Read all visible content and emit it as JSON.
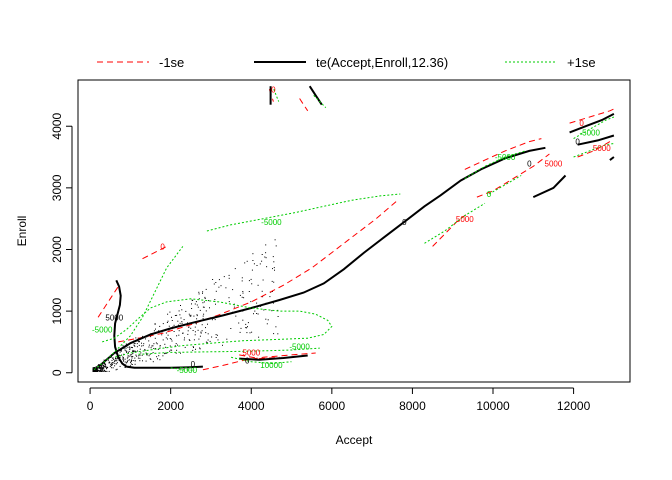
{
  "chart_data": {
    "type": "line",
    "xlabel": "Accept",
    "ylabel": "Enroll",
    "xlim": [
      -300,
      13400
    ],
    "ylim": [
      -150,
      4750
    ],
    "xticks": [
      0,
      2000,
      4000,
      6000,
      8000,
      10000,
      12000
    ],
    "yticks": [
      0,
      1000,
      2000,
      3000,
      4000
    ],
    "legend_position": "top",
    "series": [
      {
        "name": "-1se",
        "color": "#ff0000",
        "dash": "6,4",
        "width": 1,
        "segments": [
          [
            [
              200,
              900
            ],
            [
              350,
              1050
            ],
            [
              500,
              1200
            ],
            [
              700,
              1400
            ]
          ],
          [
            [
              1300,
              1850
            ],
            [
              1600,
              1950
            ],
            [
              1900,
              2050
            ]
          ],
          [
            [
              700,
              500
            ],
            [
              1200,
              560
            ],
            [
              1800,
              640
            ],
            [
              2500,
              780
            ],
            [
              3200,
              940
            ],
            [
              4000,
              1150
            ],
            [
              4800,
              1420
            ],
            [
              5500,
              1700
            ],
            [
              6100,
              2000
            ],
            [
              6600,
              2250
            ],
            [
              7100,
              2500
            ],
            [
              7600,
              2780
            ]
          ],
          [
            [
              2800,
              50
            ],
            [
              3300,
              120
            ],
            [
              3800,
              200
            ],
            [
              4300,
              250
            ],
            [
              5000,
              290
            ],
            [
              5600,
              320
            ]
          ],
          [
            [
              3700,
              290
            ],
            [
              4200,
              230
            ],
            [
              4700,
              250
            ]
          ],
          [
            [
              4450,
              4600
            ],
            [
              4500,
              4500
            ],
            [
              4550,
              4400
            ]
          ],
          [
            [
              5200,
              4450
            ],
            [
              5300,
              4350
            ],
            [
              5400,
              4250
            ]
          ],
          [
            [
              8500,
              2050
            ],
            [
              8800,
              2250
            ],
            [
              9100,
              2450
            ],
            [
              9400,
              2600
            ]
          ],
          [
            [
              9300,
              3300
            ],
            [
              9800,
              3450
            ],
            [
              10300,
              3600
            ],
            [
              10900,
              3750
            ],
            [
              11200,
              3800
            ]
          ],
          [
            [
              9600,
              2850
            ],
            [
              10000,
              2950
            ],
            [
              10500,
              3150
            ],
            [
              11000,
              3350
            ],
            [
              11400,
              3550
            ]
          ],
          [
            [
              11900,
              4050
            ],
            [
              12400,
              4150
            ],
            [
              12900,
              4250
            ],
            [
              13000,
              4280
            ]
          ],
          [
            [
              12100,
              3500
            ],
            [
              12500,
              3600
            ],
            [
              12900,
              3750
            ]
          ]
        ]
      },
      {
        "name": "te(Accept,Enroll,12.36)",
        "color": "#000000",
        "dash": "",
        "width": 2,
        "segments": [
          [
            [
              80,
              30
            ],
            [
              300,
              150
            ],
            [
              600,
              320
            ],
            [
              1000,
              480
            ],
            [
              1500,
              620
            ],
            [
              2000,
              720
            ],
            [
              2600,
              820
            ],
            [
              3300,
              930
            ],
            [
              4000,
              1050
            ],
            [
              4700,
              1180
            ],
            [
              5300,
              1300
            ],
            [
              5800,
              1450
            ],
            [
              6300,
              1680
            ],
            [
              6800,
              1950
            ],
            [
              7300,
              2200
            ],
            [
              7800,
              2450
            ],
            [
              8300,
              2700
            ],
            [
              8700,
              2880
            ],
            [
              9200,
              3120
            ],
            [
              9700,
              3300
            ],
            [
              10300,
              3480
            ],
            [
              10900,
              3600
            ],
            [
              11300,
              3650
            ]
          ],
          [
            [
              650,
              1500
            ],
            [
              720,
              1400
            ],
            [
              760,
              1250
            ],
            [
              740,
              1100
            ],
            [
              680,
              950
            ],
            [
              620,
              800
            ],
            [
              600,
              600
            ],
            [
              620,
              420
            ],
            [
              700,
              250
            ],
            [
              800,
              150
            ],
            [
              900,
              100
            ],
            [
              1100,
              80
            ],
            [
              1500,
              80
            ],
            [
              2000,
              80
            ],
            [
              2500,
              90
            ],
            [
              2800,
              100
            ]
          ],
          [
            [
              3700,
              230
            ],
            [
              4200,
              210
            ],
            [
              4800,
              240
            ],
            [
              5400,
              280
            ]
          ],
          [
            [
              4480,
              4650
            ],
            [
              4480,
              4500
            ],
            [
              4480,
              4350
            ]
          ],
          [
            [
              5450,
              4650
            ],
            [
              5600,
              4500
            ],
            [
              5750,
              4350
            ]
          ],
          [
            [
              11000,
              2850
            ],
            [
              11500,
              3000
            ],
            [
              11800,
              3200
            ]
          ],
          [
            [
              11900,
              3900
            ],
            [
              12300,
              4000
            ],
            [
              12700,
              4100
            ],
            [
              13000,
              4200
            ]
          ],
          [
            [
              12100,
              3700
            ],
            [
              12600,
              3770
            ],
            [
              13000,
              3850
            ]
          ],
          [
            [
              12900,
              3450
            ],
            [
              13000,
              3500
            ]
          ]
        ]
      },
      {
        "name": "+1se",
        "color": "#00cc00",
        "dash": "2,2",
        "width": 1,
        "segments": [
          [
            [
              100,
              50
            ],
            [
              400,
              200
            ],
            [
              700,
              400
            ],
            [
              1000,
              600
            ],
            [
              1300,
              900
            ],
            [
              1600,
              1300
            ],
            [
              1900,
              1700
            ],
            [
              2300,
              2050
            ]
          ],
          [
            [
              300,
              500
            ],
            [
              600,
              560
            ],
            [
              900,
              700
            ],
            [
              1200,
              880
            ],
            [
              1500,
              1050
            ],
            [
              1900,
              1150
            ],
            [
              2500,
              1200
            ],
            [
              3200,
              1150
            ],
            [
              4000,
              1050
            ],
            [
              4700,
              1000
            ],
            [
              5200,
              1000
            ],
            [
              5600,
              950
            ],
            [
              5900,
              850
            ],
            [
              6000,
              750
            ],
            [
              5800,
              620
            ],
            [
              5400,
              560
            ],
            [
              4600,
              540
            ],
            [
              3800,
              520
            ],
            [
              3000,
              480
            ],
            [
              2300,
              440
            ],
            [
              1600,
              380
            ],
            [
              1000,
              320
            ],
            [
              600,
              250
            ]
          ],
          [
            [
              1200,
              300
            ],
            [
              2000,
              330
            ],
            [
              3000,
              340
            ],
            [
              4000,
              350
            ],
            [
              5000,
              370
            ],
            [
              5700,
              400
            ]
          ],
          [
            [
              2900,
              2300
            ],
            [
              3500,
              2400
            ],
            [
              4300,
              2500
            ],
            [
              5100,
              2600
            ],
            [
              5800,
              2700
            ],
            [
              6500,
              2800
            ],
            [
              7200,
              2870
            ],
            [
              7700,
              2900
            ]
          ],
          [
            [
              2000,
              80
            ],
            [
              2300,
              50
            ],
            [
              2600,
              40
            ]
          ],
          [
            [
              3500,
              250
            ],
            [
              4000,
              180
            ],
            [
              4500,
              150
            ],
            [
              5000,
              180
            ]
          ],
          [
            [
              4560,
              4600
            ],
            [
              4620,
              4500
            ],
            [
              4680,
              4400
            ]
          ],
          [
            [
              5550,
              4500
            ],
            [
              5700,
              4400
            ],
            [
              5850,
              4300
            ]
          ],
          [
            [
              8300,
              2100
            ],
            [
              8800,
              2300
            ],
            [
              9300,
              2550
            ],
            [
              9800,
              2750
            ]
          ],
          [
            [
              9300,
              3150
            ],
            [
              9800,
              3350
            ],
            [
              10300,
              3500
            ],
            [
              10800,
              3600
            ]
          ],
          [
            [
              9900,
              2900
            ],
            [
              10300,
              3050
            ],
            [
              10700,
              3200
            ]
          ],
          [
            [
              12000,
              3800
            ],
            [
              12400,
              3950
            ],
            [
              12800,
              4100
            ],
            [
              13000,
              4150
            ]
          ],
          [
            [
              12000,
              3500
            ],
            [
              12400,
              3600
            ],
            [
              12800,
              3700
            ],
            [
              13000,
              3720
            ]
          ]
        ]
      }
    ],
    "contour_labels": [
      {
        "text": "0",
        "x": 7800,
        "y": 2400,
        "color": "#000000"
      },
      {
        "text": "0",
        "x": 10900,
        "y": 3350,
        "color": "#000000"
      },
      {
        "text": "0",
        "x": 12100,
        "y": 3700,
        "color": "#000000"
      },
      {
        "text": "0",
        "x": 3900,
        "y": 150,
        "color": "#000000"
      },
      {
        "text": "0",
        "x": 2550,
        "y": 90,
        "color": "#000000"
      },
      {
        "text": "5000",
        "x": 600,
        "y": 850,
        "color": "#000000"
      },
      {
        "text": "-5000",
        "x": 4500,
        "y": 2400,
        "color": "#00cc00"
      },
      {
        "text": "-5000",
        "x": 300,
        "y": 650,
        "color": "#00cc00"
      },
      {
        "text": "-5000",
        "x": 10300,
        "y": 3450,
        "color": "#00cc00"
      },
      {
        "text": "-5000",
        "x": 2400,
        "y": 0,
        "color": "#00cc00"
      },
      {
        "text": "10000",
        "x": 4500,
        "y": 80,
        "color": "#00cc00"
      },
      {
        "text": "-5000",
        "x": 12400,
        "y": 3850,
        "color": "#00cc00"
      },
      {
        "text": "-5000",
        "x": 5200,
        "y": 380,
        "color": "#00cc00"
      },
      {
        "text": "0",
        "x": 9900,
        "y": 2850,
        "color": "#00cc00"
      },
      {
        "text": "0",
        "x": 1800,
        "y": 2000,
        "color": "#ff0000"
      },
      {
        "text": "5000",
        "x": 4000,
        "y": 280,
        "color": "#ff0000"
      },
      {
        "text": "5000",
        "x": 9300,
        "y": 2450,
        "color": "#ff0000"
      },
      {
        "text": "5000",
        "x": 11500,
        "y": 3350,
        "color": "#ff0000"
      },
      {
        "text": "5000",
        "x": 12700,
        "y": 3600,
        "color": "#ff0000"
      },
      {
        "text": "0",
        "x": 12200,
        "y": 4000,
        "color": "#ff0000"
      },
      {
        "text": "0",
        "x": 4550,
        "y": 4550,
        "color": "#ff0000"
      }
    ]
  }
}
